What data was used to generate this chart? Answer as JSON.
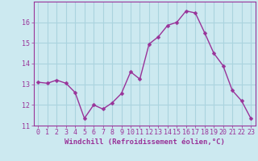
{
  "x": [
    0,
    1,
    2,
    3,
    4,
    5,
    6,
    7,
    8,
    9,
    10,
    11,
    12,
    13,
    14,
    15,
    16,
    17,
    18,
    19,
    20,
    21,
    22,
    23
  ],
  "y": [
    13.1,
    13.05,
    13.2,
    13.05,
    12.6,
    11.35,
    12.0,
    11.8,
    12.1,
    12.55,
    13.6,
    13.25,
    14.95,
    15.3,
    15.85,
    16.0,
    16.55,
    16.45,
    15.5,
    14.5,
    13.9,
    12.7,
    12.2,
    11.35
  ],
  "line_color": "#993399",
  "marker_color": "#993399",
  "bg_color": "#cce9f0",
  "grid_color": "#aad4de",
  "xlabel": "Windchill (Refroidissement éolien,°C)",
  "ylim": [
    11,
    17
  ],
  "xlim": [
    -0.5,
    23.5
  ],
  "yticks": [
    11,
    12,
    13,
    14,
    15,
    16
  ],
  "xticks": [
    0,
    1,
    2,
    3,
    4,
    5,
    6,
    7,
    8,
    9,
    10,
    11,
    12,
    13,
    14,
    15,
    16,
    17,
    18,
    19,
    20,
    21,
    22,
    23
  ],
  "xlabel_fontsize": 6.5,
  "tick_fontsize": 6,
  "line_width": 1.0,
  "marker_size": 2.5
}
